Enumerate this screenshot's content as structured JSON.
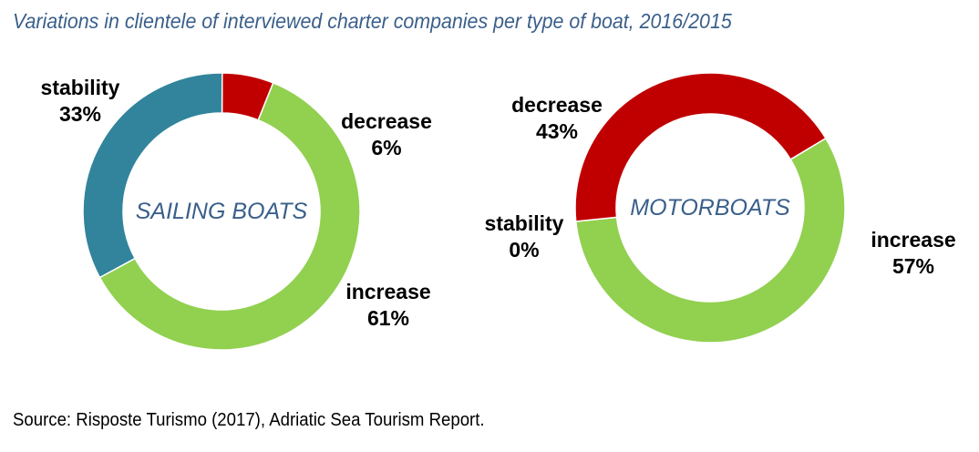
{
  "title": "Variations in clientele of interviewed charter companies per type of boat, 2016/2015",
  "source": "Source: Risposte Turismo (2017), Adriatic Sea Tourism Report.",
  "colors": {
    "increase": "#92d050",
    "decrease": "#c00000",
    "stability": "#31849b",
    "title": "#3a5f8a"
  },
  "chart_data": [
    {
      "type": "pie",
      "variant": "donut",
      "center_label": "SAILING BOATS",
      "slices": [
        {
          "label": "decrease",
          "value": 6,
          "value_text": "6%"
        },
        {
          "label": "increase",
          "value": 61,
          "value_text": "61%"
        },
        {
          "label": "stability",
          "value": 33,
          "value_text": "33%"
        }
      ]
    },
    {
      "type": "pie",
      "variant": "donut",
      "center_label": "MOTORBOATS",
      "slices": [
        {
          "label": "increase",
          "value": 57,
          "value_text": "57%"
        },
        {
          "label": "stability",
          "value": 0,
          "value_text": "0%"
        },
        {
          "label": "decrease",
          "value": 43,
          "value_text": "43%"
        }
      ]
    }
  ]
}
